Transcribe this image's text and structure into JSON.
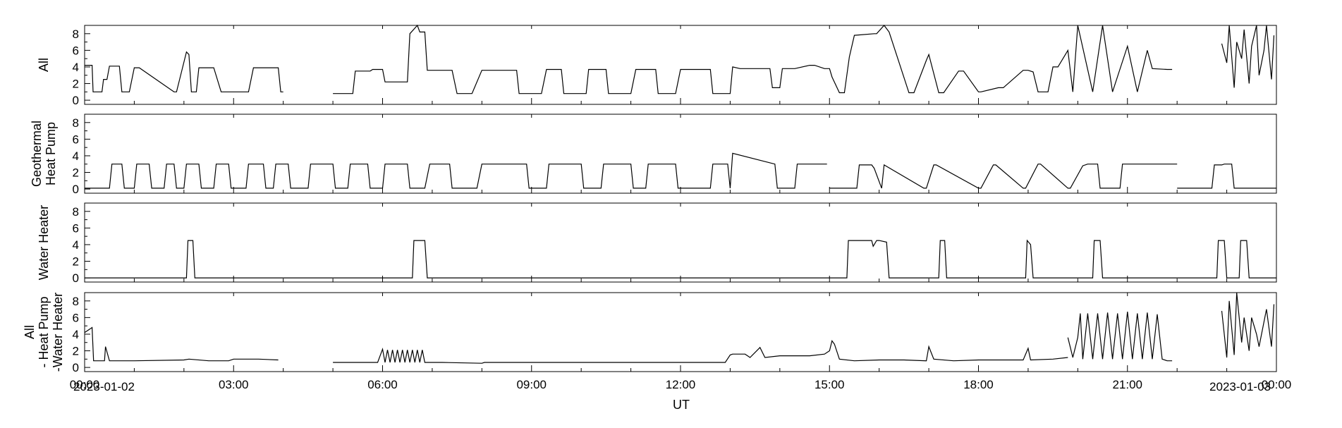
{
  "chart_data": {
    "type": "line",
    "xlabel": "UT",
    "x_unit": "hours",
    "xlim": [
      0,
      24
    ],
    "x_ticks": [
      0,
      3,
      6,
      9,
      12,
      15,
      18,
      21,
      24
    ],
    "x_tick_labels": [
      "00:00",
      "03:00",
      "06:00",
      "09:00",
      "12:00",
      "15:00",
      "18:00",
      "21:00",
      "00:00"
    ],
    "start_date": "2023-01-02",
    "end_date": "2023-01-03",
    "ylim": [
      -0.5,
      9
    ],
    "y_ticks": [
      0,
      2,
      4,
      6,
      8
    ],
    "y_tick_labels": [
      "0",
      "2",
      "4",
      "6",
      "8"
    ],
    "panels": [
      {
        "ylabel_lines": [
          "All"
        ],
        "series": [
          {
            "x": [
              0.0,
              0.15,
              0.17,
              0.35,
              0.38,
              0.45,
              0.5,
              0.7,
              0.75,
              0.9,
              1.0,
              1.1,
              1.8,
              1.85,
              2.05,
              2.1,
              2.15,
              2.25,
              2.3,
              2.6,
              2.75,
              3.0,
              3.3,
              3.4,
              3.9,
              3.95,
              4.0
            ],
            "y": [
              4.2,
              4.2,
              1.0,
              1.0,
              2.5,
              2.5,
              4.1,
              4.1,
              1.0,
              1.0,
              3.9,
              3.9,
              1.0,
              1.0,
              5.8,
              5.5,
              1.0,
              1.0,
              3.9,
              3.9,
              1.0,
              1.0,
              1.0,
              3.9,
              3.9,
              1.0,
              1.0
            ]
          },
          {
            "x": [
              5.0,
              5.4,
              5.45,
              5.75,
              5.8,
              6.0,
              6.05,
              6.5,
              6.55,
              6.7,
              6.75,
              6.85,
              6.9,
              7.0,
              7.05,
              7.4,
              7.5,
              7.8,
              8.0,
              8.05,
              8.7,
              8.75,
              9.2,
              9.3,
              9.6,
              9.65,
              10.1,
              10.15,
              10.5,
              10.55,
              11.0,
              11.1,
              11.5,
              11.55,
              11.9,
              12.0,
              12.6,
              12.65,
              13.0,
              13.05,
              13.2,
              13.8,
              13.85,
              14.0,
              14.05,
              14.3,
              14.6,
              14.7,
              14.9,
              15.0,
              15.05,
              15.2,
              15.3,
              15.4,
              15.5,
              15.9,
              15.95,
              16.1,
              16.2,
              16.6,
              16.7,
              16.95,
              17.0,
              17.2,
              17.3,
              17.6,
              17.7,
              18.0,
              18.05,
              18.4,
              18.5,
              18.9,
              19.0,
              19.1,
              19.2,
              19.4,
              19.5,
              19.6,
              19.8,
              19.9,
              20.0,
              20.3,
              20.5,
              20.7,
              21.0,
              21.2,
              21.4,
              21.5,
              21.8,
              21.9
            ],
            "y": [
              0.8,
              0.8,
              3.5,
              3.5,
              3.7,
              3.7,
              2.2,
              2.2,
              8.0,
              9.0,
              8.2,
              8.2,
              3.6,
              3.6,
              3.6,
              3.6,
              0.8,
              0.8,
              3.6,
              3.6,
              3.6,
              0.8,
              0.8,
              3.7,
              3.7,
              0.8,
              0.8,
              3.7,
              3.7,
              0.8,
              0.8,
              3.7,
              3.7,
              0.8,
              0.8,
              3.7,
              3.7,
              0.8,
              0.8,
              4.0,
              3.8,
              3.8,
              1.5,
              1.5,
              3.8,
              3.8,
              4.2,
              4.2,
              3.8,
              3.8,
              2.8,
              0.9,
              0.9,
              5.2,
              7.8,
              8.0,
              8.0,
              9.0,
              8.2,
              0.9,
              0.9,
              4.8,
              5.5,
              0.9,
              0.9,
              3.5,
              3.5,
              1.0,
              1.0,
              1.5,
              1.5,
              3.6,
              3.6,
              3.4,
              1.0,
              1.0,
              4.0,
              4.0,
              6.0,
              1.0,
              9.0,
              1.0,
              9.0,
              1.0,
              6.5,
              1.0,
              6.0,
              3.8,
              3.7,
              3.7
            ]
          },
          {
            "x": [
              22.9,
              23.0,
              23.05,
              23.15,
              23.2,
              23.3,
              23.35,
              23.45,
              23.5,
              23.6,
              23.65,
              23.75,
              23.8,
              23.9,
              23.95
            ],
            "y": [
              6.8,
              4.5,
              9.0,
              1.5,
              7.0,
              5.0,
              8.5,
              2.0,
              6.5,
              9.0,
              3.0,
              6.0,
              9.0,
              2.5,
              7.8
            ]
          }
        ]
      },
      {
        "ylabel_lines": [
          "Geothermal",
          "Heat Pump"
        ],
        "series": [
          {
            "x": [
              0.0,
              0.5,
              0.55,
              0.75,
              0.8,
              1.0,
              1.05,
              1.3,
              1.35,
              1.6,
              1.65,
              1.8,
              1.85,
              2.0,
              2.05,
              2.3,
              2.35,
              2.6,
              2.65,
              2.9,
              2.95,
              3.25,
              3.3,
              3.6,
              3.65,
              3.8,
              3.85,
              4.1,
              4.15,
              4.5,
              4.55,
              5.0,
              5.05,
              5.3,
              5.35,
              5.7,
              5.75,
              6.0,
              6.05,
              6.5,
              6.55,
              6.85,
              6.95,
              7.35,
              7.4,
              7.9,
              8.0,
              8.9,
              8.95,
              9.3,
              9.35,
              10.0,
              10.05,
              10.4,
              10.45,
              11.0,
              11.05,
              11.3,
              11.35,
              11.9,
              11.95,
              12.6,
              12.65,
              12.95,
              13.0,
              13.05,
              13.9,
              13.95,
              14.3,
              14.35,
              14.85,
              14.95
            ],
            "y": [
              0.1,
              0.1,
              3.0,
              3.0,
              0.1,
              0.1,
              3.0,
              3.0,
              0.1,
              0.1,
              3.0,
              3.0,
              0.1,
              0.1,
              3.0,
              3.0,
              0.1,
              0.1,
              3.0,
              3.0,
              0.1,
              0.1,
              3.0,
              3.0,
              0.1,
              0.1,
              3.0,
              3.0,
              0.1,
              0.1,
              3.0,
              3.0,
              0.1,
              0.1,
              3.0,
              3.0,
              0.1,
              0.1,
              3.0,
              3.0,
              0.1,
              0.1,
              3.0,
              3.0,
              0.1,
              0.1,
              3.0,
              3.0,
              0.1,
              0.1,
              3.0,
              3.0,
              0.1,
              0.1,
              3.0,
              3.0,
              0.1,
              0.1,
              3.0,
              3.0,
              0.1,
              0.1,
              3.0,
              3.0,
              0.1,
              4.3,
              3.0,
              0.1,
              0.1,
              3.0,
              3.0,
              3.0
            ]
          },
          {
            "x": [
              15.0,
              15.55,
              15.6,
              15.85,
              15.9,
              16.05,
              16.1,
              16.9,
              16.95,
              17.1,
              17.15,
              18.0,
              18.05,
              18.3,
              18.35,
              18.9,
              18.95,
              19.2,
              19.25,
              19.8,
              19.85,
              20.1,
              20.2,
              20.4,
              20.45,
              20.85,
              20.9,
              21.6,
              21.65,
              22.0
            ],
            "y": [
              0.1,
              0.1,
              2.9,
              2.9,
              2.5,
              0.1,
              2.9,
              0.1,
              0.1,
              2.9,
              2.9,
              0.1,
              0.1,
              2.9,
              2.9,
              0.1,
              0.1,
              3.0,
              3.0,
              0.1,
              0.1,
              2.8,
              3.0,
              3.0,
              0.1,
              0.1,
              3.0,
              3.0,
              3.0,
              3.0
            ]
          },
          {
            "x": [
              22.0,
              22.7,
              22.75,
              22.9,
              22.95,
              23.1,
              23.15,
              23.9,
              24.0
            ],
            "y": [
              0.1,
              0.1,
              2.9,
              2.9,
              3.0,
              3.0,
              0.1,
              0.1,
              0.1
            ]
          }
        ]
      },
      {
        "ylabel_lines": [
          "Water Heater"
        ],
        "series": [
          {
            "x": [
              0.0,
              2.05,
              2.08,
              2.18,
              2.22,
              6.6,
              6.63,
              6.85,
              6.9,
              15.35,
              15.38,
              15.85,
              15.88,
              15.95,
              16.0,
              16.15,
              16.2,
              17.2,
              17.23,
              17.32,
              17.36,
              18.95,
              18.98,
              19.05,
              19.1,
              20.3,
              20.33,
              20.45,
              20.5,
              22.8,
              22.83,
              22.95,
              23.0,
              23.25,
              23.28,
              23.4,
              23.45,
              24.0
            ],
            "y": [
              0.0,
              0.0,
              4.5,
              4.5,
              0.0,
              0.0,
              4.5,
              4.5,
              0.0,
              0.0,
              4.5,
              4.5,
              3.8,
              4.5,
              4.5,
              4.3,
              0.0,
              0.0,
              4.5,
              4.5,
              0.0,
              0.0,
              4.5,
              4.0,
              0.0,
              0.0,
              4.5,
              4.5,
              0.0,
              0.0,
              4.5,
              4.5,
              0.0,
              0.0,
              4.5,
              4.5,
              0.0,
              0.0
            ]
          }
        ]
      },
      {
        "ylabel_lines": [
          "All",
          "- Heat Pump",
          "-Water Heater"
        ],
        "series": [
          {
            "x": [
              0.0,
              0.15,
              0.18,
              0.4,
              0.42,
              0.5,
              0.55,
              1.0,
              2.0,
              2.1,
              2.5,
              2.9,
              3.0,
              3.5,
              3.9
            ],
            "y": [
              4.2,
              4.8,
              0.8,
              0.8,
              2.5,
              0.8,
              0.8,
              0.8,
              0.9,
              1.0,
              0.8,
              0.8,
              1.0,
              1.0,
              0.9
            ]
          },
          {
            "x": [
              5.0,
              5.5,
              5.9,
              6.0,
              6.05,
              6.1,
              6.15,
              6.2,
              6.25,
              6.3,
              6.35,
              6.4,
              6.45,
              6.5,
              6.55,
              6.6,
              6.65,
              6.7,
              6.75,
              6.8,
              6.85,
              6.9,
              7.2,
              8.0,
              8.05,
              9.0,
              10.0,
              10.05,
              11.0,
              12.0,
              12.9,
              13.0,
              13.05,
              13.3,
              13.4,
              13.6,
              13.7,
              14.0,
              14.3,
              14.6,
              14.9,
              15.0,
              15.05,
              15.1,
              15.2,
              15.5,
              16.0,
              16.5,
              16.95,
              17.0,
              17.1,
              17.5,
              18.0,
              18.5,
              18.9,
              19.0,
              19.05,
              19.5,
              19.8
            ],
            "y": [
              0.6,
              0.6,
              0.6,
              2.2,
              0.6,
              2.1,
              0.6,
              2.1,
              0.6,
              2.1,
              0.6,
              2.1,
              0.6,
              2.1,
              0.6,
              2.1,
              0.6,
              2.1,
              0.6,
              2.1,
              0.6,
              0.6,
              0.6,
              0.5,
              0.6,
              0.6,
              0.6,
              0.6,
              0.6,
              0.6,
              0.6,
              1.5,
              1.6,
              1.6,
              1.2,
              2.4,
              1.2,
              1.4,
              1.4,
              1.4,
              1.6,
              2.0,
              3.2,
              2.8,
              1.0,
              0.8,
              0.9,
              0.9,
              0.8,
              2.5,
              1.0,
              0.8,
              0.9,
              0.9,
              0.9,
              2.3,
              0.9,
              1.0,
              1.2
            ]
          },
          {
            "x": [
              19.8,
              19.9,
              20.0,
              20.05,
              20.1,
              20.2,
              20.3,
              20.4,
              20.5,
              20.6,
              20.7,
              20.8,
              20.9,
              21.0,
              21.1,
              21.2,
              21.3,
              21.4,
              21.5,
              21.6,
              21.7,
              21.8,
              21.9
            ],
            "y": [
              3.6,
              1.2,
              3.6,
              6.5,
              1.0,
              6.5,
              1.0,
              6.5,
              1.0,
              6.6,
              1.0,
              6.5,
              1.0,
              6.7,
              1.0,
              6.5,
              1.0,
              6.6,
              1.0,
              6.4,
              1.0,
              0.8,
              0.8
            ]
          },
          {
            "x": [
              22.9,
              23.0,
              23.05,
              23.15,
              23.2,
              23.3,
              23.35,
              23.45,
              23.5,
              23.6,
              23.65,
              23.75,
              23.8,
              23.9,
              23.95
            ],
            "y": [
              6.8,
              1.2,
              8.0,
              1.5,
              9.0,
              3.0,
              6.0,
              2.0,
              6.0,
              4.0,
              2.5,
              5.5,
              7.0,
              2.5,
              7.6
            ]
          }
        ]
      }
    ]
  }
}
